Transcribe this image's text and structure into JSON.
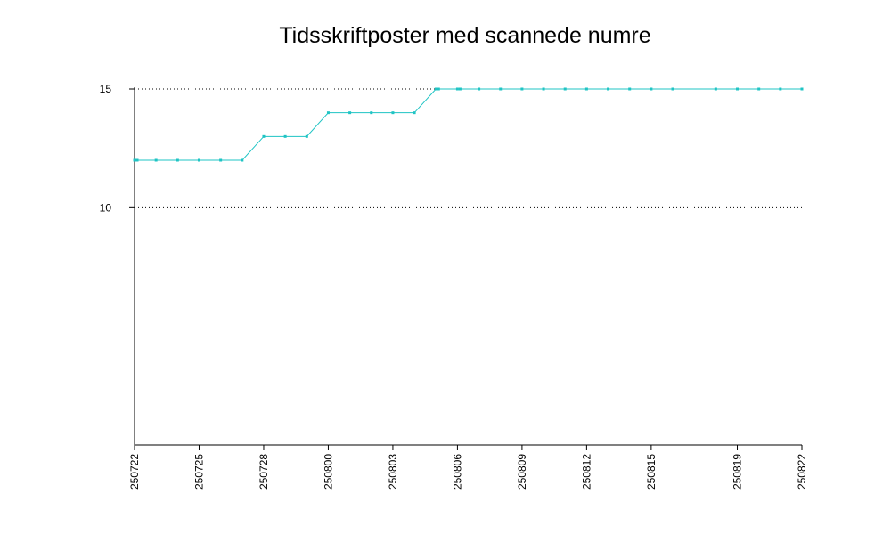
{
  "chart_data": {
    "type": "line",
    "title": "Tidsskriftposter med scannede numre",
    "xlabel": "",
    "ylabel": "",
    "ylim": [
      0,
      15
    ],
    "y_ticks": [
      10,
      15
    ],
    "x_tick_labels": [
      "250722",
      "250725",
      "250728",
      "250800",
      "250803",
      "250806",
      "250809",
      "250812",
      "250815",
      "250819",
      "250822"
    ],
    "line_color": "#1fc4c4",
    "grid": "dotted horizontal at y ticks",
    "series": [
      {
        "x": [
          "250722",
          "250722",
          "250723",
          "250724",
          "250725",
          "250726",
          "250727",
          "250728",
          "250729",
          "250730",
          "250731",
          "250801",
          "250802",
          "250803",
          "250804",
          "250805",
          "250805",
          "250806",
          "250806",
          "250807",
          "250808",
          "250809",
          "250810",
          "250811",
          "250812",
          "250813",
          "250814",
          "250815",
          "250816",
          "250818",
          "250819",
          "250820",
          "250821",
          "250822"
        ],
        "values": [
          12,
          12,
          12,
          12,
          12,
          12,
          12,
          13,
          13,
          13,
          14,
          14,
          14,
          14,
          14,
          15,
          15,
          15,
          15,
          15,
          15,
          15,
          15,
          15,
          15,
          15,
          15,
          15,
          15,
          15,
          15,
          15,
          15,
          15
        ]
      }
    ]
  }
}
